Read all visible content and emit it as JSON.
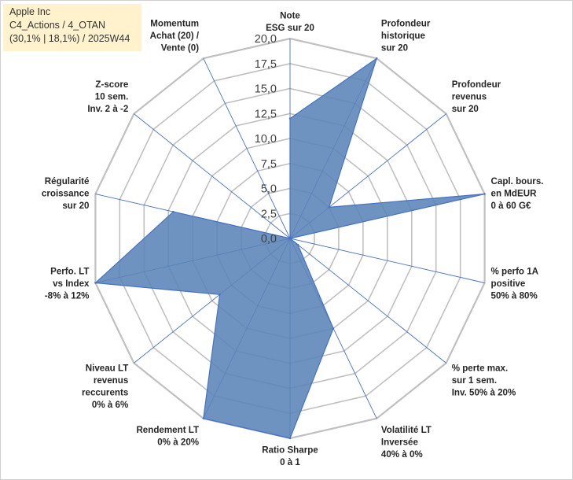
{
  "title_box": {
    "line1": "Apple Inc",
    "line2": "C4_Actions / 4_OTAN",
    "line3": "(30,1% | 18,1%) / 2025W44"
  },
  "colors": {
    "fill": "#5b84b8",
    "stroke": "#4472c4",
    "grid": "#c0c0c0",
    "spoke": "#4a72c4",
    "title_bg": "#fff2cc"
  },
  "chart_data": {
    "type": "radar",
    "r_range": [
      0,
      20
    ],
    "r_ticks": [
      "0,0",
      "2,5",
      "5,0",
      "7,5",
      "10,0",
      "12,5",
      "15,0",
      "17,5",
      "20,0"
    ],
    "grid": true,
    "axes": [
      {
        "label": [
          "Note",
          "ESG sur 20"
        ],
        "value": 12
      },
      {
        "label": [
          "Profondeur",
          "historique",
          "sur 20"
        ],
        "value": 20
      },
      {
        "label": [
          "Profondeur",
          "revenus",
          "sur 20"
        ],
        "value": 5
      },
      {
        "label": [
          "Capl. bours.",
          "en MdEUR",
          "0 à 60 G€"
        ],
        "value": 20
      },
      {
        "label": [
          "% perfo 1A",
          "positive",
          "50% à 80%"
        ],
        "value": 0
      },
      {
        "label": [
          "% perte max.",
          "sur 1 sem.",
          "Inv. 50% à 20%"
        ],
        "value": 1
      },
      {
        "label": [
          "Volatilité LT",
          "Inversée",
          "40% à 0%"
        ],
        "value": 10
      },
      {
        "label": [
          "Ratio Sharpe",
          "0 à 1"
        ],
        "value": 20
      },
      {
        "label": [
          "Rendement LT",
          "0% à 20%"
        ],
        "value": 20
      },
      {
        "label": [
          "Niveau LT",
          "revenus",
          "reccurents",
          "0% à 6%"
        ],
        "value": 9
      },
      {
        "label": [
          "Perfo. LT",
          "vs Index",
          "-8% à 12%"
        ],
        "value": 20
      },
      {
        "label": [
          "Régularité",
          "croissance",
          "sur 20"
        ],
        "value": 12
      },
      {
        "label": [
          "Z-score",
          "10 sem.",
          "Inv. 2 à -2"
        ],
        "value": 0
      },
      {
        "label": [
          "Momentum",
          "Achat (20) /",
          "Vente (0)"
        ],
        "value": 0
      }
    ]
  }
}
